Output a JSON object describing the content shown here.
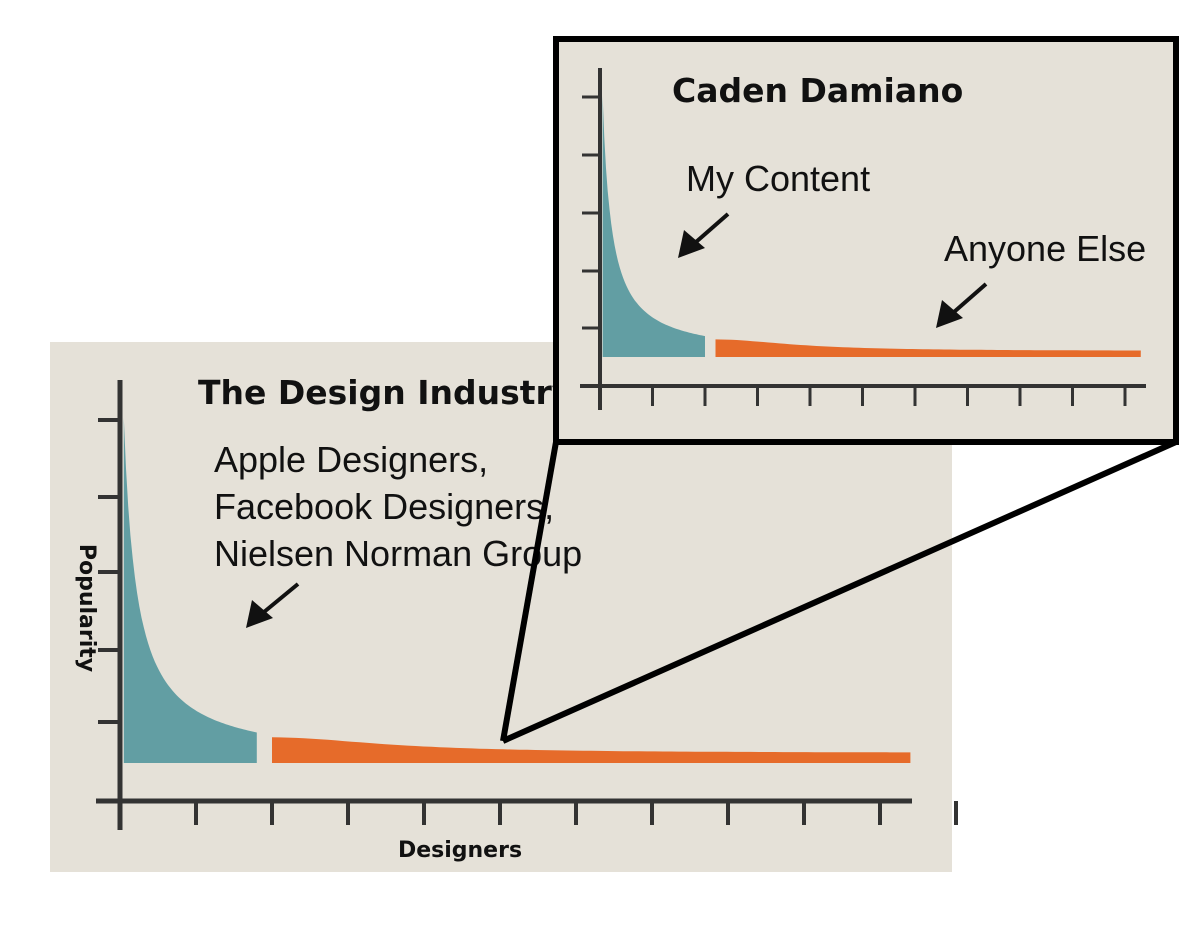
{
  "colors": {
    "panel_bg": "#e5e1d8",
    "head": "#629ea3",
    "tail": "#e66b2a",
    "ink": "#1a1a1a"
  },
  "chart_data": [
    {
      "type": "area",
      "title": "The Design Industry",
      "xlabel": "Designers",
      "ylabel": "Popularity",
      "shape": "long-tail",
      "x_ticks": 11,
      "y_ticks": 5,
      "grid": false,
      "segments": [
        {
          "label": "Apple Designers,\nFacebook Designers,\nNielsen Norman Group",
          "color": "#629ea3",
          "x_range": [
            0.05,
            1.8
          ]
        },
        {
          "label": "",
          "color": "#e66b2a",
          "x_range": [
            2,
            10.4
          ]
        }
      ]
    },
    {
      "type": "area",
      "title": "Caden Damiano",
      "xlabel": "",
      "ylabel": "",
      "shape": "long-tail",
      "x_ticks": 10,
      "y_ticks": 5,
      "grid": false,
      "zoom_of": "The Design Industry",
      "segments": [
        {
          "label": "My Content",
          "color": "#629ea3",
          "x_range": [
            0.05,
            2.0
          ]
        },
        {
          "label": "Anyone Else",
          "color": "#e66b2a",
          "x_range": [
            2.2,
            10.3
          ]
        }
      ]
    }
  ]
}
